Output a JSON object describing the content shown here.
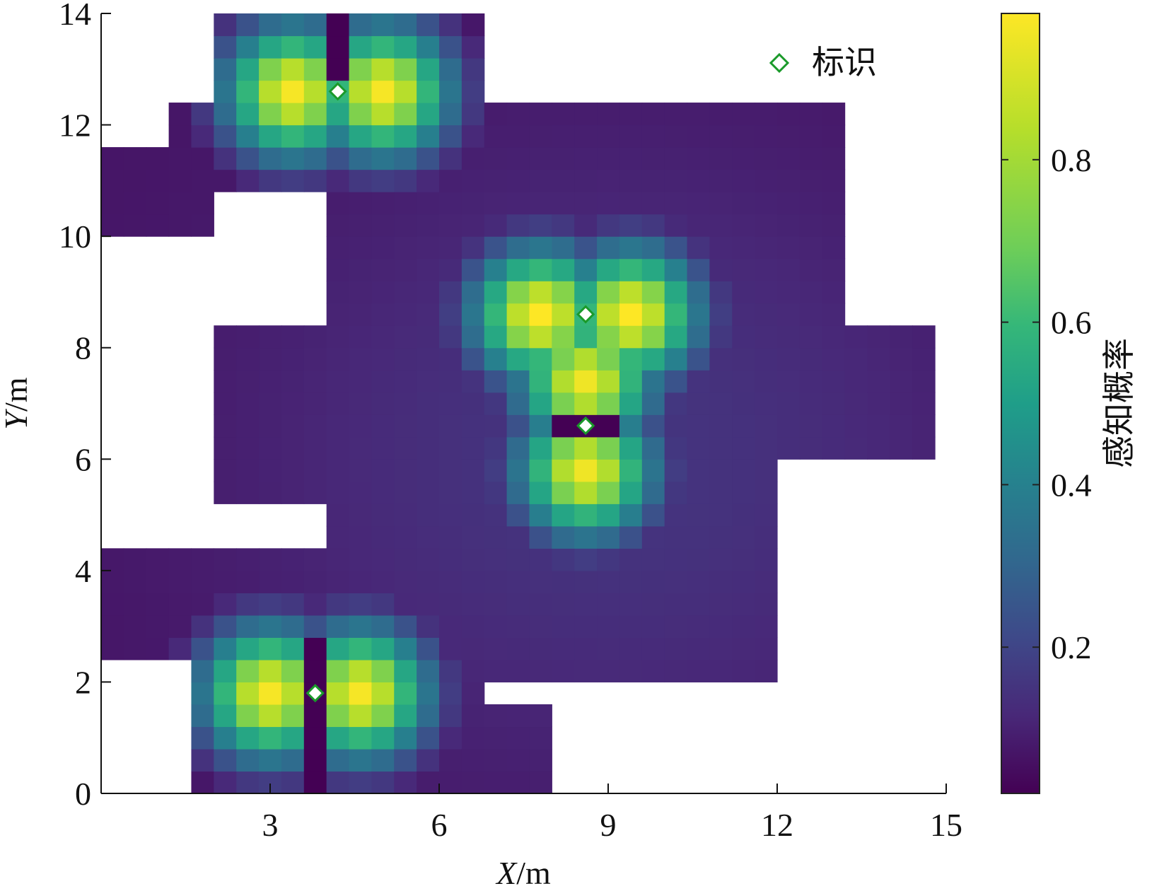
{
  "chart_data": {
    "type": "heatmap",
    "title": "",
    "xlabel": "X/m",
    "ylabel": "Y/m",
    "xlim": [
      0,
      15
    ],
    "ylim": [
      0,
      14
    ],
    "xticks": [
      "3",
      "6",
      "9",
      "12",
      "15"
    ],
    "xtick_values": [
      3,
      6,
      9,
      12,
      15
    ],
    "yticks": [
      "0",
      "2",
      "4",
      "6",
      "8",
      "10",
      "12",
      "14"
    ],
    "ytick_values": [
      0,
      2,
      4,
      6,
      8,
      10,
      12,
      14
    ],
    "colormap": "viridis",
    "cell_size": [
      0.4,
      0.4
    ],
    "colorbar": {
      "label": "感知概率",
      "range": [
        0.02,
        0.98
      ],
      "ticks": [
        "0.2",
        "0.4",
        "0.6",
        "0.8"
      ],
      "tick_values": [
        0.2,
        0.4,
        0.6,
        0.8
      ]
    },
    "legend": {
      "label": "标识",
      "marker": "diamond",
      "marker_color": "#1a9a2a",
      "placement": "top-right"
    },
    "beacons": [
      {
        "x": 4.2,
        "y": 12.6
      },
      {
        "x": 3.8,
        "y": 1.8
      },
      {
        "x": 8.6,
        "y": 8.6
      },
      {
        "x": 8.6,
        "y": 6.6
      }
    ],
    "coverage_regions": [
      {
        "x": [
          2.0,
          6.8
        ],
        "y": [
          11.4,
          14.0
        ]
      },
      {
        "x": [
          1.2,
          4.0
        ],
        "y": [
          11.0,
          12.4
        ]
      },
      {
        "x": [
          0.0,
          2.0
        ],
        "y": [
          10.0,
          11.6
        ]
      },
      {
        "x": [
          4.0,
          13.2
        ],
        "y": [
          9.0,
          12.4
        ]
      },
      {
        "x": [
          4.0,
          15.0
        ],
        "y": [
          6.0,
          9.6
        ]
      },
      {
        "x": [
          1.6,
          4.4
        ],
        "y": [
          5.4,
          8.6
        ]
      },
      {
        "x": [
          4.0,
          12.0
        ],
        "y": [
          2.0,
          6.2
        ]
      },
      {
        "x": [
          0.0,
          4.0
        ],
        "y": [
          2.4,
          4.4
        ]
      },
      {
        "x": [
          1.6,
          6.8
        ],
        "y": [
          0.0,
          3.0
        ]
      },
      {
        "x": [
          6.8,
          8.0
        ],
        "y": [
          0.0,
          1.6
        ]
      }
    ],
    "excluded_regions": [
      {
        "x": [
          0.0,
          2.0
        ],
        "y": [
          4.4,
          10.0
        ]
      },
      {
        "x": [
          0.0,
          1.6
        ],
        "y": [
          0.0,
          2.4
        ]
      },
      {
        "x": [
          8.0,
          15.0
        ],
        "y": [
          0.0,
          2.0
        ]
      },
      {
        "x": [
          12.0,
          15.0
        ],
        "y": [
          2.0,
          6.0
        ]
      },
      {
        "x": [
          13.2,
          15.0
        ],
        "y": [
          8.4,
          14.0
        ]
      }
    ],
    "blocked_strips": [
      {
        "x": [
          3.6,
          4.0
        ],
        "y": [
          0.0,
          2.8
        ]
      },
      {
        "x": [
          4.0,
          4.4
        ],
        "y": [
          12.8,
          14.0
        ]
      },
      {
        "x": [
          8.0,
          9.2
        ],
        "y": [
          6.4,
          6.8
        ]
      }
    ],
    "hotspots": [
      {
        "x": 3.4,
        "y": 12.6,
        "peak": 0.97
      },
      {
        "x": 5.0,
        "y": 12.6,
        "peak": 0.97
      },
      {
        "x": 3.0,
        "y": 1.8,
        "peak": 0.97
      },
      {
        "x": 4.6,
        "y": 1.8,
        "peak": 0.97
      },
      {
        "x": 7.8,
        "y": 8.6,
        "peak": 0.98
      },
      {
        "x": 9.4,
        "y": 8.6,
        "peak": 0.98
      },
      {
        "x": 8.6,
        "y": 7.4,
        "peak": 0.96
      },
      {
        "x": 8.6,
        "y": 5.8,
        "peak": 0.96
      }
    ]
  }
}
